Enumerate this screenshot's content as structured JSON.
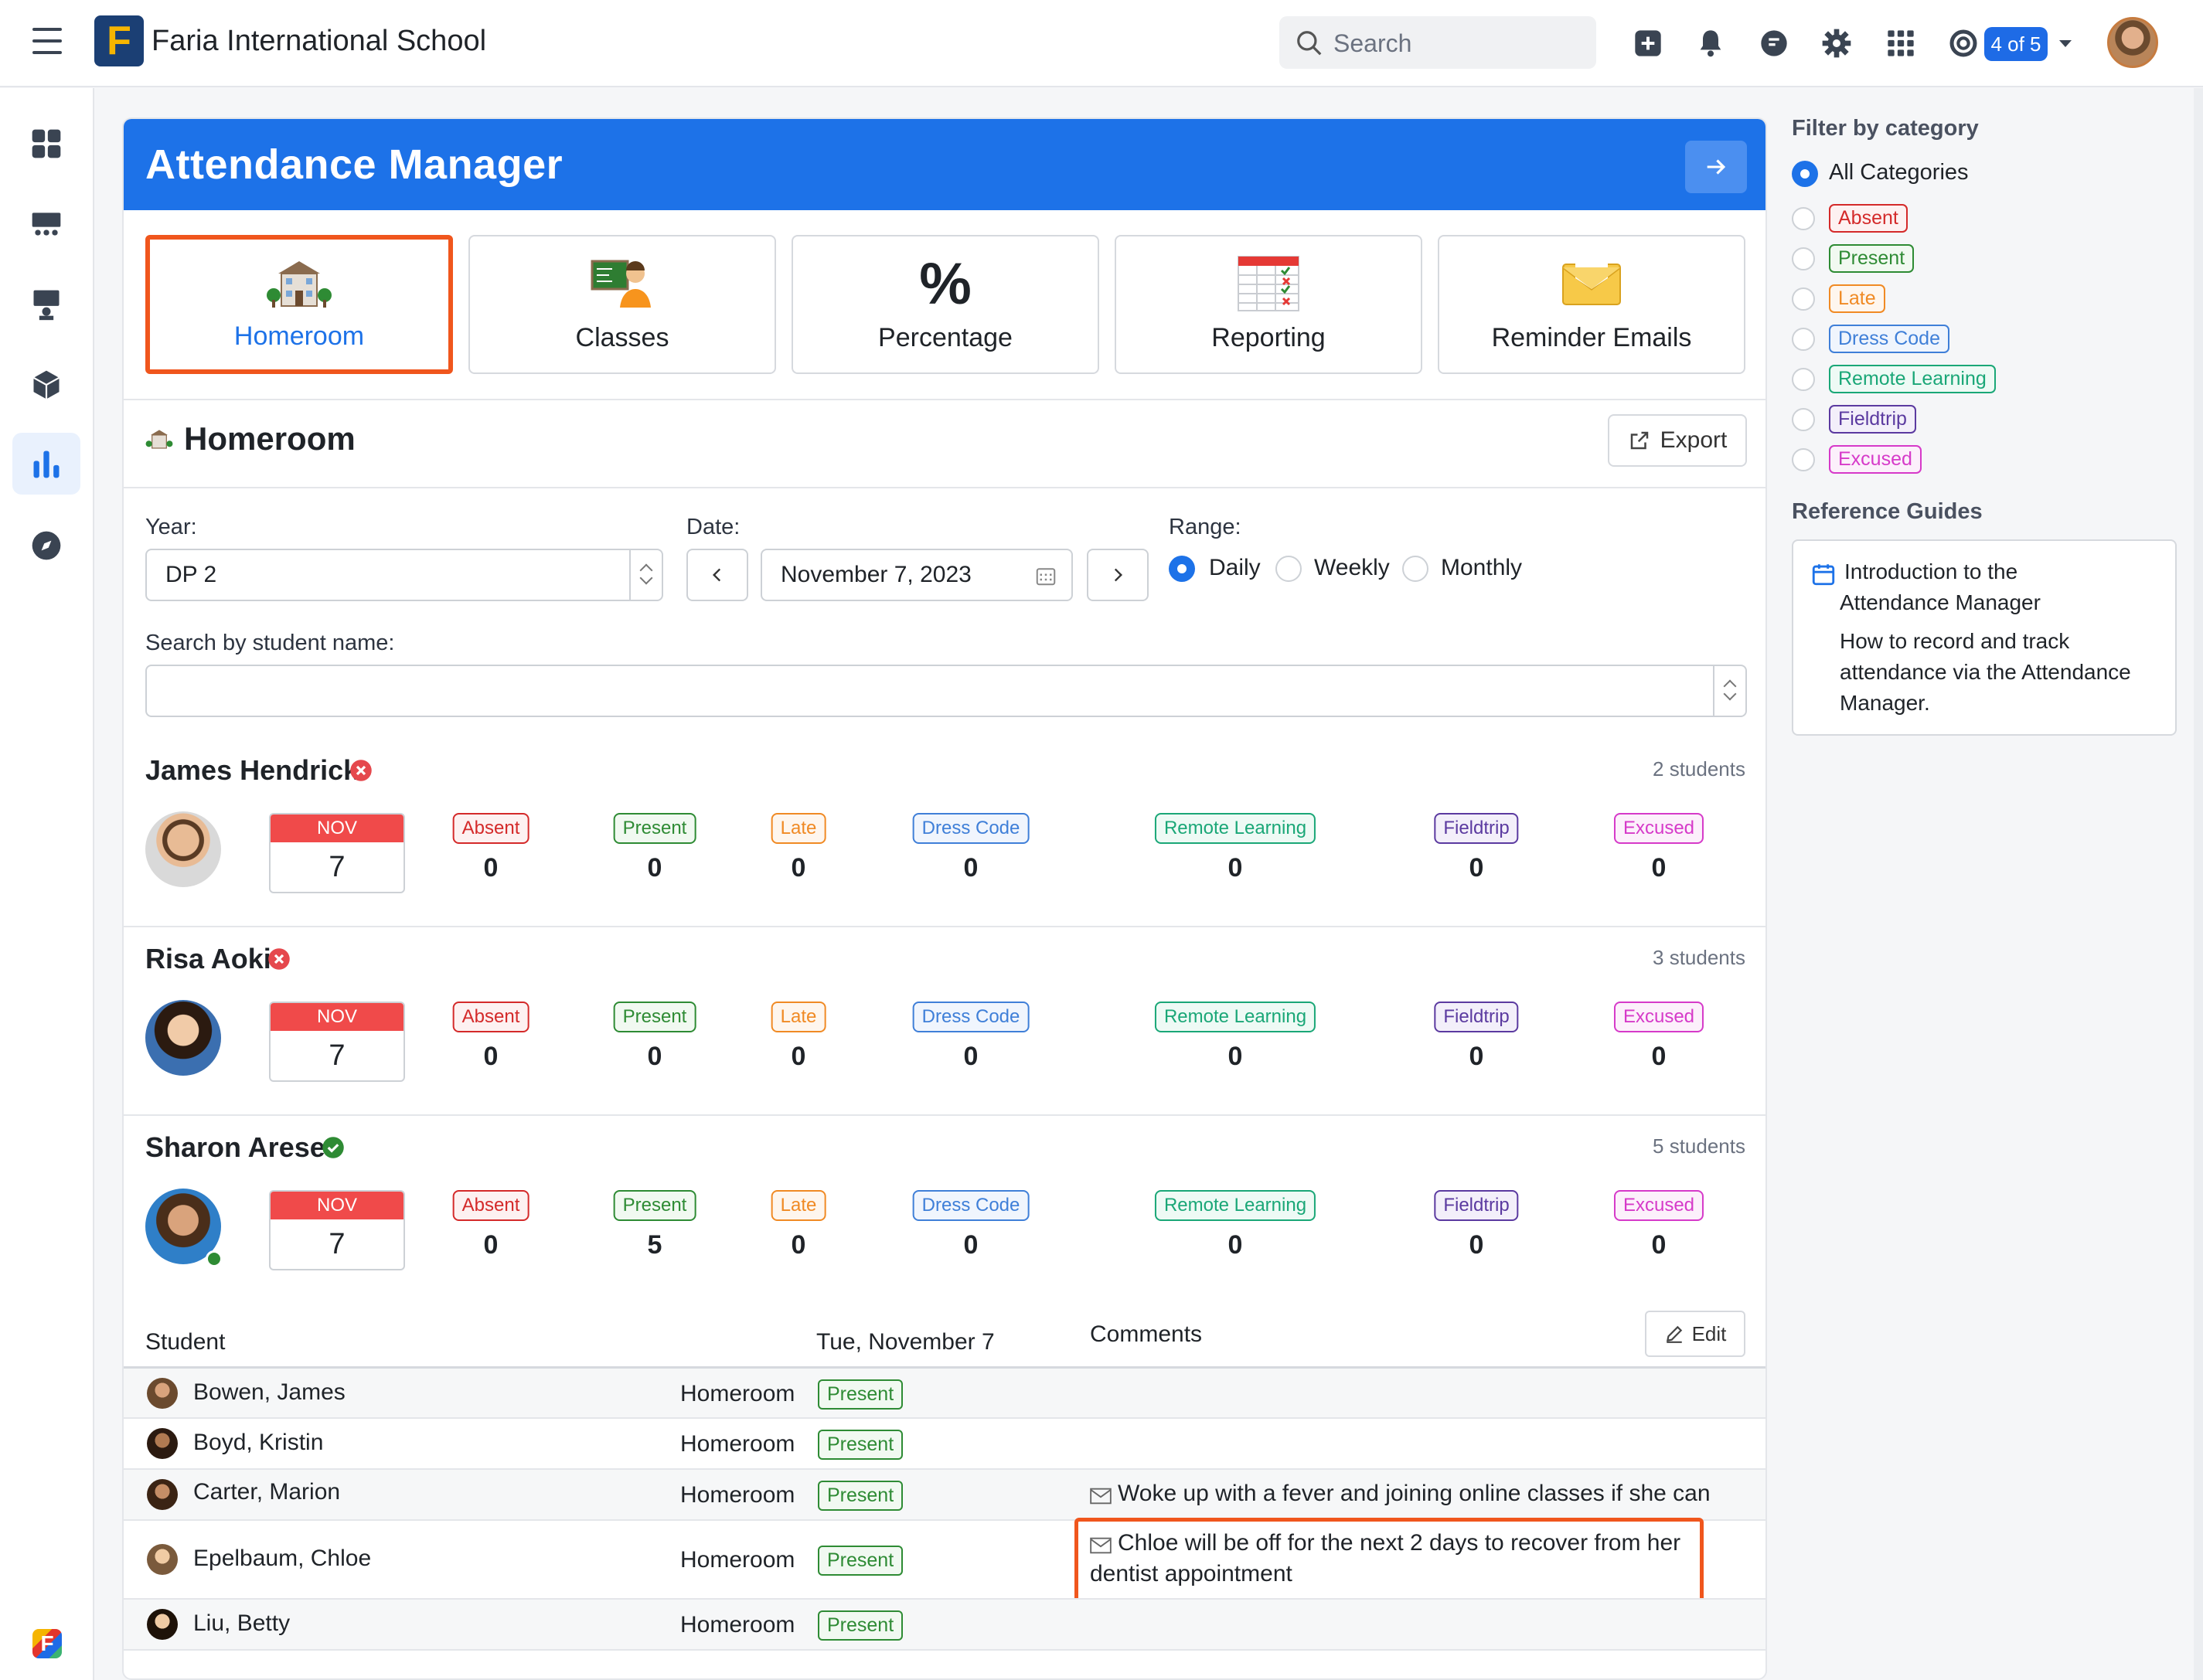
{
  "topbar": {
    "school_name": "Faria International School",
    "logo_letter": "F",
    "search_placeholder": "Search",
    "pager_badge": "4 of 5",
    "icons": [
      "plus-square-icon",
      "bell-icon",
      "chat-icon",
      "gear-icon",
      "apps-grid-icon",
      "lifebuoy-icon"
    ]
  },
  "sidebar": {
    "icons": [
      "dashboard-icon",
      "classroom-icon",
      "teacher-icon",
      "cube-icon",
      "bar-chart-icon",
      "compass-icon"
    ],
    "active": "bar-chart-icon"
  },
  "manager": {
    "title": "Attendance Manager",
    "tabs": [
      {
        "label": "Homeroom",
        "icon": "school-building-icon",
        "selected": true
      },
      {
        "label": "Classes",
        "icon": "class-board-icon"
      },
      {
        "label": "Percentage",
        "icon": "%"
      },
      {
        "label": "Reporting",
        "icon": "spreadsheet-icon"
      },
      {
        "label": "Reminder Emails",
        "icon": "envelope-icon"
      }
    ]
  },
  "section": {
    "title": "Homeroom",
    "export_label": "Export"
  },
  "filters": {
    "year_label": "Year:",
    "year_value": "DP 2",
    "date_label": "Date:",
    "date_value": "November 7, 2023",
    "range_label": "Range:",
    "range_options": [
      "Daily",
      "Weekly",
      "Monthly"
    ],
    "range_selected": "Daily",
    "search_label": "Search by student name:",
    "search_value": ""
  },
  "categories": [
    "Absent",
    "Present",
    "Late",
    "Dress Code",
    "Remote Learning",
    "Fieldtrip",
    "Excused"
  ],
  "teachers": [
    {
      "name": "James Hendrick",
      "status": "incomplete",
      "students": "2 students",
      "month": "NOV",
      "day": "7",
      "counts": [
        "0",
        "0",
        "0",
        "0",
        "0",
        "0",
        "0"
      ]
    },
    {
      "name": "Risa Aoki",
      "status": "incomplete",
      "students": "3 students",
      "month": "NOV",
      "day": "7",
      "counts": [
        "0",
        "0",
        "0",
        "0",
        "0",
        "0",
        "0"
      ]
    },
    {
      "name": "Sharon Arese",
      "status": "complete",
      "students": "5 students",
      "month": "NOV",
      "day": "7",
      "counts": [
        "0",
        "5",
        "0",
        "0",
        "0",
        "0",
        "0"
      ]
    }
  ],
  "student_table": {
    "col_student": "Student",
    "col_date": "Tue, November 7",
    "col_comments": "Comments",
    "edit_label": "Edit",
    "rows": [
      {
        "name": "Bowen, James",
        "group": "Homeroom",
        "status": "Present",
        "comment": ""
      },
      {
        "name": "Boyd, Kristin",
        "group": "Homeroom",
        "status": "Present",
        "comment": ""
      },
      {
        "name": "Carter, Marion",
        "group": "Homeroom",
        "status": "Present",
        "comment": "Woke up with a fever and joining online classes if she can"
      },
      {
        "name": "Epelbaum, Chloe",
        "group": "Homeroom",
        "status": "Present",
        "comment_line1": "Chloe will be off for the next 2 days to recover from her",
        "comment_line2": "dentist appointment"
      },
      {
        "name": "Liu, Betty",
        "group": "Homeroom",
        "status": "Present",
        "comment": ""
      }
    ]
  },
  "right_panel": {
    "filter_title": "Filter by category",
    "all_label": "All Categories",
    "guides_title": "Reference Guides",
    "guide_title_line1": "Introduction to the",
    "guide_title_line2": "Attendance Manager",
    "guide_desc_line1": "How to record and track",
    "guide_desc_line2": "attendance via the Attendance",
    "guide_desc_line3": "Manager."
  },
  "colors": {
    "brand_blue": "#1d72e8",
    "highlight_orange": "#f0561d",
    "absent": "#d42a2a",
    "present": "#2e8b34",
    "late": "#f08a24",
    "dress_code": "#3f7fd8",
    "remote": "#1aa777",
    "fieldtrip": "#5b3aa0",
    "excused": "#d63ac9"
  }
}
